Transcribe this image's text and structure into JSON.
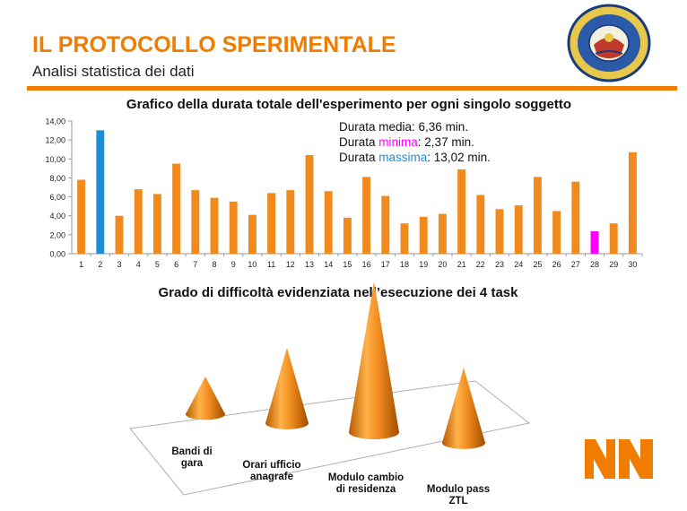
{
  "header": {
    "title": "IL PROTOCOLLO SPERIMENTALE",
    "subtitle": "Analisi statistica dei dati"
  },
  "colors": {
    "accent": "#f07c00",
    "bar_default": "#f08a1c",
    "bar_max": "#1a8fd8",
    "bar_min": "#ff00ff"
  },
  "stats": {
    "media_prefix": "Durata media: 6,36 min.",
    "minima_prefix": "Durata ",
    "minima_word": "minima",
    "minima_suffix": ": 2,37 min.",
    "massima_prefix": "Durata ",
    "massima_word": "massima",
    "massima_suffix": ": 13,02 min."
  },
  "chart_data": [
    {
      "type": "bar",
      "title": "Grafico della durata totale dell'esperimento per ogni singolo soggetto",
      "categories": [
        "1",
        "2",
        "3",
        "4",
        "5",
        "6",
        "7",
        "8",
        "9",
        "10",
        "11",
        "12",
        "13",
        "14",
        "15",
        "16",
        "17",
        "18",
        "19",
        "20",
        "21",
        "22",
        "23",
        "24",
        "25",
        "26",
        "27",
        "28",
        "29",
        "30"
      ],
      "values": [
        7.8,
        13.02,
        4.0,
        6.8,
        6.3,
        9.5,
        6.7,
        5.9,
        5.5,
        4.1,
        6.4,
        6.7,
        10.4,
        6.6,
        3.8,
        8.1,
        6.1,
        3.2,
        3.9,
        4.2,
        8.9,
        6.2,
        4.7,
        5.1,
        8.1,
        4.5,
        7.6,
        2.37,
        3.2,
        10.7
      ],
      "highlight": {
        "2": "max",
        "28": "min"
      },
      "ylim": [
        0,
        14
      ],
      "yticks": [
        "0,00",
        "2,00",
        "4,00",
        "6,00",
        "8,00",
        "10,00",
        "12,00",
        "14,00"
      ],
      "grid": false,
      "xlabel": "",
      "ylabel": ""
    },
    {
      "type": "cone",
      "title": "Grado di difficoltà evidenziata nell’esecuzione dei 4 task",
      "categories": [
        "Bandi di gara",
        "Orari ufficio anagrafe",
        "Modulo cambio di residenza",
        "Modulo pass ZTL"
      ],
      "labels": [
        "Bandi di\ngara",
        "Orari ufficio\nanagrafe",
        "Modulo cambio\ndi residenza",
        "Modulo pass\nZTL"
      ],
      "values": [
        1,
        2,
        4,
        2
      ],
      "grid": false
    }
  ]
}
